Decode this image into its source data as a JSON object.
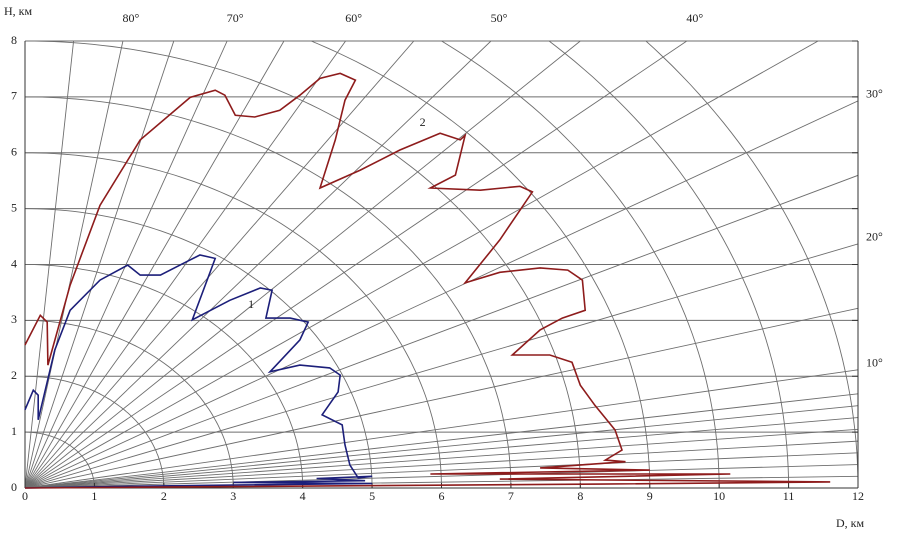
{
  "chart_data": {
    "type": "line",
    "x_label": "D, км",
    "y_label": "H, км",
    "xlim": [
      0,
      12
    ],
    "ylim": [
      0,
      8
    ],
    "xticks": [
      0,
      1,
      2,
      3,
      4,
      5,
      6,
      7,
      8,
      9,
      10,
      11,
      12
    ],
    "yticks": [
      0,
      1,
      2,
      3,
      4,
      5,
      6,
      7,
      8
    ],
    "grid": true,
    "angle_ticks": [
      1,
      2,
      3,
      4,
      5,
      6,
      7,
      8,
      {
        "value": 10,
        "label": "10°"
      },
      15,
      {
        "value": 20,
        "label": "20°"
      },
      25,
      {
        "value": 30,
        "label": "30°"
      },
      35,
      {
        "value": 40,
        "label": "40°"
      },
      45,
      {
        "value": 50,
        "label": "50°"
      },
      55,
      {
        "value": 60,
        "label": "60°"
      },
      65,
      {
        "value": 70,
        "label": "70°"
      },
      75,
      {
        "value": 80,
        "label": "80°"
      },
      85
    ],
    "series": [
      {
        "name": "1",
        "color": "#1c1f7a",
        "x": [
          0,
          0.12,
          0.19,
          0.19,
          0.43,
          0.65,
          1.08,
          1.48,
          1.66,
          1.95,
          2.31,
          2.52,
          2.74,
          2.69,
          2.41,
          2.95,
          3.39,
          3.56,
          3.47,
          3.82,
          4.08,
          3.96,
          3.53,
          3.96,
          4.39,
          4.54,
          4.51,
          4.28,
          4.57,
          4.61,
          4.68,
          4.8,
          5.0,
          4.2,
          4.9,
          3.0,
          5.0,
          1.5,
          0
        ],
        "values": [
          1.4,
          1.75,
          1.66,
          1.22,
          2.47,
          3.18,
          3.72,
          3.99,
          3.81,
          3.81,
          4.04,
          4.17,
          4.11,
          3.94,
          3.01,
          3.36,
          3.58,
          3.54,
          3.04,
          3.04,
          2.97,
          2.65,
          2.08,
          2.2,
          2.15,
          2.02,
          1.72,
          1.31,
          1.13,
          0.77,
          0.41,
          0.18,
          0.21,
          0.17,
          0.13,
          0.1,
          0.08,
          0.03,
          0
        ]
      },
      {
        "name": "2",
        "color": "#8e1c1c",
        "x": [
          0,
          0.22,
          0.32,
          0.33,
          0.65,
          1.08,
          1.66,
          2.38,
          2.74,
          2.88,
          3.03,
          3.31,
          3.67,
          3.96,
          4.25,
          4.54,
          4.76,
          4.61,
          4.47,
          4.25,
          4.83,
          5.4,
          5.98,
          6.27,
          6.34,
          6.2,
          5.84,
          6.56,
          7.13,
          7.31,
          7.13,
          6.84,
          6.34,
          6.84,
          7.42,
          7.82,
          8.03,
          8.07,
          7.74,
          7.42,
          7.02,
          7.56,
          7.88,
          8.0,
          8.21,
          8.5,
          8.6,
          8.36,
          8.65,
          7.42,
          9.0,
          5.84,
          10.16,
          6.84,
          11.6,
          8.29,
          0
        ],
        "values": [
          2.56,
          3.09,
          2.97,
          2.2,
          3.63,
          5.06,
          6.23,
          6.99,
          7.12,
          7.03,
          6.67,
          6.64,
          6.76,
          7.03,
          7.33,
          7.42,
          7.3,
          6.94,
          6.23,
          5.37,
          5.69,
          6.05,
          6.35,
          6.23,
          6.31,
          5.6,
          5.37,
          5.33,
          5.4,
          5.3,
          4.97,
          4.44,
          3.67,
          3.86,
          3.94,
          3.9,
          3.72,
          3.18,
          3.04,
          2.83,
          2.38,
          2.38,
          2.25,
          1.84,
          1.48,
          1.04,
          0.68,
          0.5,
          0.47,
          0.36,
          0.32,
          0.25,
          0.25,
          0.16,
          0.11,
          0.07,
          0
        ]
      }
    ]
  }
}
